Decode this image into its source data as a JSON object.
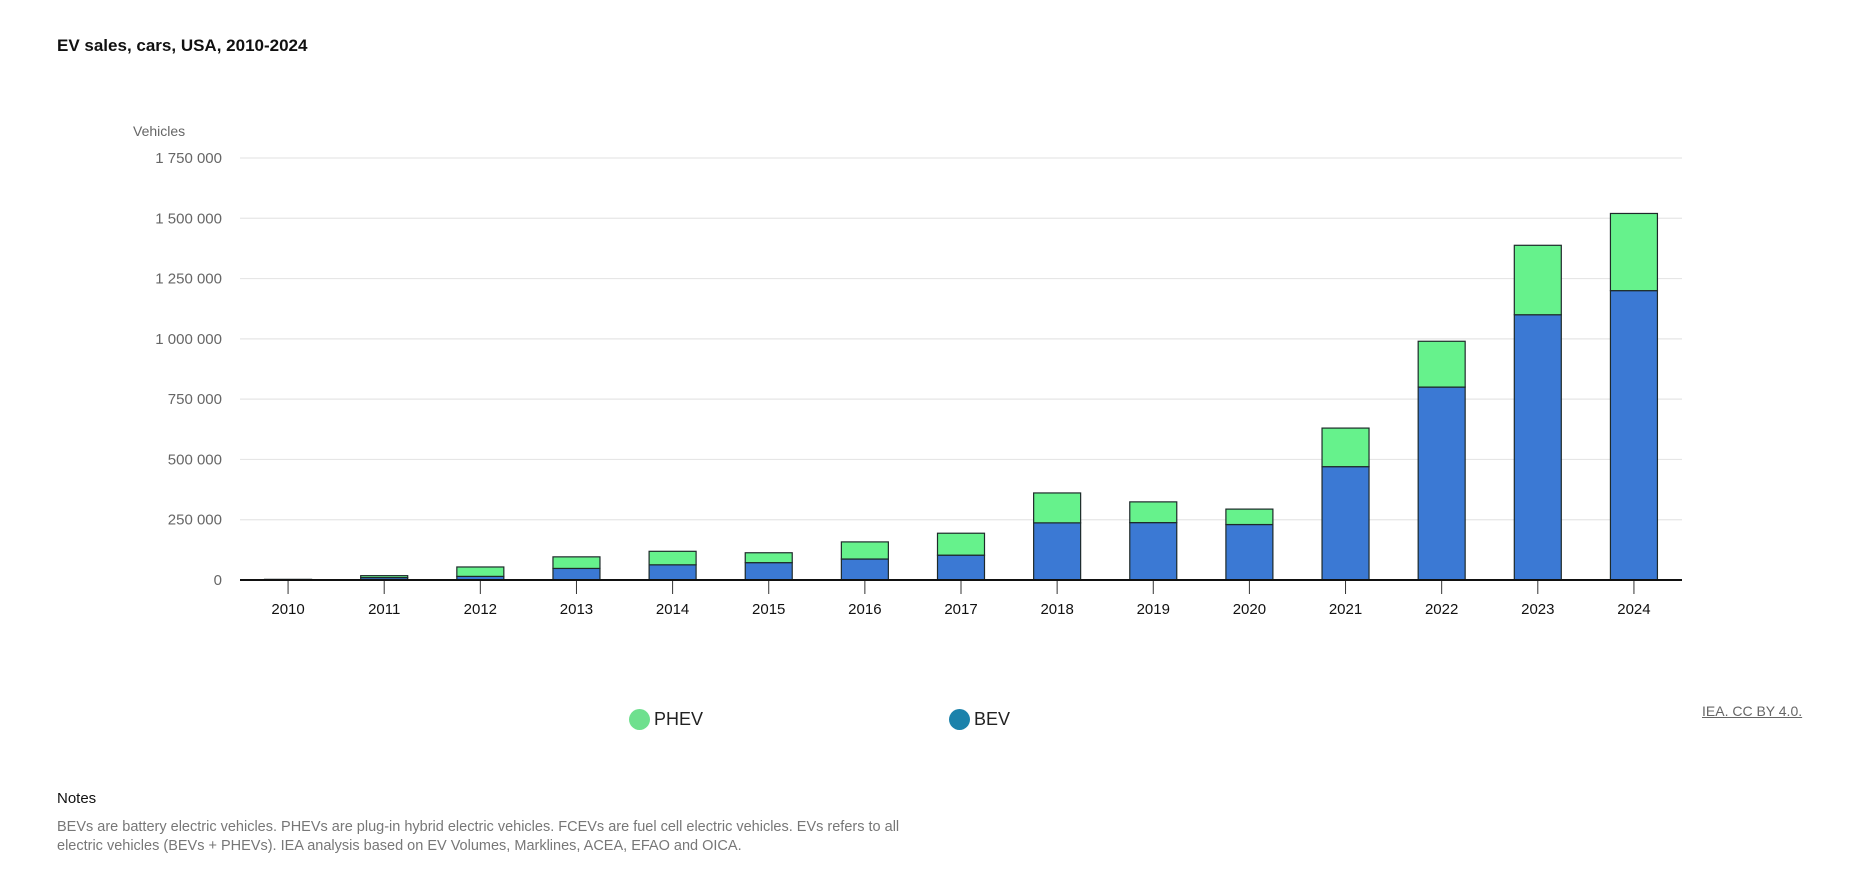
{
  "title": "EV sales, cars, USA, 2010-2024",
  "credit": "IEA. CC BY 4.0.",
  "notes": {
    "heading": "Notes",
    "text": "BEVs are battery electric vehicles. PHEVs are plug-in hybrid electric vehicles. FCEVs are fuel cell electric vehicles. EVs refers to all electric vehicles (BEVs + PHEVs). IEA analysis based on EV Volumes, Marklines, ACEA, EFAO and OICA."
  },
  "legend": [
    {
      "name": "PHEV",
      "color": "#6ee08e"
    },
    {
      "name": "BEV",
      "color": "#1b82ab"
    }
  ],
  "chart_data": {
    "type": "bar",
    "stacked": true,
    "ylabel": "Vehicles",
    "ylim": [
      0,
      1750000
    ],
    "yticks": [
      0,
      250000,
      500000,
      750000,
      1000000,
      1250000,
      1500000,
      1750000
    ],
    "ytick_labels": [
      "0",
      "250 000",
      "500 000",
      "750 000",
      "1 000 000",
      "1 250 000",
      "1 500 000",
      "1 750 000"
    ],
    "grid": true,
    "categories": [
      "2010",
      "2011",
      "2012",
      "2013",
      "2014",
      "2015",
      "2016",
      "2017",
      "2018",
      "2019",
      "2020",
      "2021",
      "2022",
      "2023",
      "2024"
    ],
    "series": [
      {
        "name": "BEV",
        "color": "#3b79d4",
        "values": [
          2000,
          10000,
          15000,
          48000,
          63000,
          72000,
          87000,
          103000,
          237000,
          238000,
          230000,
          470000,
          800000,
          1100000,
          1200000
        ]
      },
      {
        "name": "PHEV",
        "color": "#66f28c",
        "values": [
          500,
          8000,
          39000,
          48000,
          56000,
          41000,
          71000,
          91000,
          124000,
          86000,
          64000,
          160000,
          190000,
          288000,
          320000
        ]
      }
    ],
    "legend_position": "bottom"
  }
}
